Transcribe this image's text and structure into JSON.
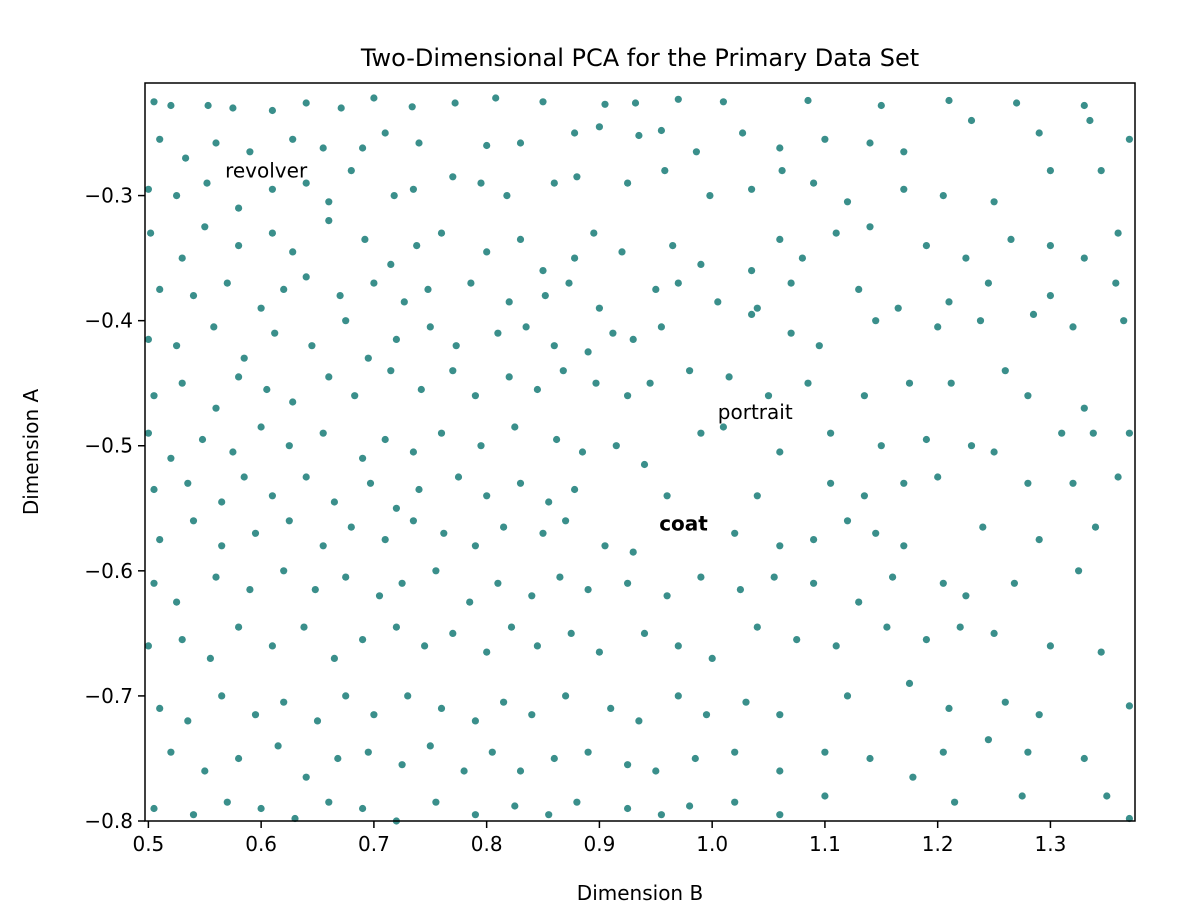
{
  "chart_data": {
    "type": "scatter",
    "title": "Two-Dimensional PCA for the Primary Data Set",
    "xlabel": "Dimension B",
    "ylabel": "Dimension A",
    "xlim": [
      0.497,
      1.375
    ],
    "ylim": [
      -0.8,
      -0.21
    ],
    "xticks": [
      0.5,
      0.6,
      0.7,
      0.8,
      0.9,
      1.0,
      1.1,
      1.2,
      1.3
    ],
    "xtick_labels": [
      "0.5",
      "0.6",
      "0.7",
      "0.8",
      "0.9",
      "1.0",
      "1.1",
      "1.2",
      "1.3"
    ],
    "yticks": [
      -0.3,
      -0.4,
      -0.5,
      -0.6,
      -0.7,
      -0.8
    ],
    "ytick_labels": [
      "−0.3",
      "−0.4",
      "−0.5",
      "−0.6",
      "−0.7",
      "−0.8"
    ],
    "grid": false,
    "point_color": "#3a8f8b",
    "annotations": [
      {
        "text": "revolver",
        "x": 0.568,
        "y": -0.28,
        "bold": false
      },
      {
        "text": "portrait",
        "x": 1.005,
        "y": -0.473,
        "bold": false
      },
      {
        "text": "coat",
        "x": 0.953,
        "y": -0.562,
        "bold": true
      }
    ],
    "points": [
      [
        0.505,
        -0.225
      ],
      [
        0.52,
        -0.228
      ],
      [
        0.553,
        -0.228
      ],
      [
        0.575,
        -0.23
      ],
      [
        0.61,
        -0.232
      ],
      [
        0.64,
        -0.226
      ],
      [
        0.671,
        -0.23
      ],
      [
        0.7,
        -0.222
      ],
      [
        0.734,
        -0.229
      ],
      [
        0.772,
        -0.226
      ],
      [
        0.808,
        -0.222
      ],
      [
        0.85,
        -0.225
      ],
      [
        0.905,
        -0.227
      ],
      [
        0.932,
        -0.226
      ],
      [
        0.97,
        -0.223
      ],
      [
        1.01,
        -0.225
      ],
      [
        1.085,
        -0.224
      ],
      [
        1.15,
        -0.228
      ],
      [
        1.21,
        -0.224
      ],
      [
        1.27,
        -0.226
      ],
      [
        1.33,
        -0.228
      ],
      [
        0.51,
        -0.255
      ],
      [
        0.533,
        -0.27
      ],
      [
        0.56,
        -0.258
      ],
      [
        0.59,
        -0.265
      ],
      [
        0.628,
        -0.255
      ],
      [
        0.655,
        -0.262
      ],
      [
        0.69,
        -0.262
      ],
      [
        0.71,
        -0.25
      ],
      [
        0.74,
        -0.258
      ],
      [
        0.8,
        -0.26
      ],
      [
        0.83,
        -0.258
      ],
      [
        0.878,
        -0.25
      ],
      [
        0.9,
        -0.245
      ],
      [
        0.935,
        -0.252
      ],
      [
        0.955,
        -0.248
      ],
      [
        0.986,
        -0.265
      ],
      [
        1.027,
        -0.25
      ],
      [
        1.06,
        -0.262
      ],
      [
        1.1,
        -0.255
      ],
      [
        1.14,
        -0.258
      ],
      [
        1.17,
        -0.265
      ],
      [
        1.23,
        -0.24
      ],
      [
        1.29,
        -0.25
      ],
      [
        1.335,
        -0.24
      ],
      [
        1.37,
        -0.255
      ],
      [
        0.5,
        -0.295
      ],
      [
        0.525,
        -0.3
      ],
      [
        0.552,
        -0.29
      ],
      [
        0.58,
        -0.31
      ],
      [
        0.61,
        -0.295
      ],
      [
        0.64,
        -0.29
      ],
      [
        0.66,
        -0.305
      ],
      [
        0.68,
        -0.28
      ],
      [
        0.718,
        -0.3
      ],
      [
        0.735,
        -0.295
      ],
      [
        0.77,
        -0.285
      ],
      [
        0.795,
        -0.29
      ],
      [
        0.818,
        -0.3
      ],
      [
        0.86,
        -0.29
      ],
      [
        0.88,
        -0.285
      ],
      [
        0.925,
        -0.29
      ],
      [
        0.958,
        -0.28
      ],
      [
        0.998,
        -0.3
      ],
      [
        1.035,
        -0.295
      ],
      [
        1.062,
        -0.28
      ],
      [
        1.09,
        -0.29
      ],
      [
        1.12,
        -0.305
      ],
      [
        1.17,
        -0.295
      ],
      [
        1.205,
        -0.3
      ],
      [
        1.25,
        -0.305
      ],
      [
        1.3,
        -0.28
      ],
      [
        1.345,
        -0.28
      ],
      [
        0.502,
        -0.33
      ],
      [
        0.53,
        -0.35
      ],
      [
        0.55,
        -0.325
      ],
      [
        0.58,
        -0.34
      ],
      [
        0.61,
        -0.33
      ],
      [
        0.628,
        -0.345
      ],
      [
        0.66,
        -0.32
      ],
      [
        0.692,
        -0.335
      ],
      [
        0.715,
        -0.355
      ],
      [
        0.738,
        -0.34
      ],
      [
        0.76,
        -0.33
      ],
      [
        0.8,
        -0.345
      ],
      [
        0.83,
        -0.335
      ],
      [
        0.85,
        -0.36
      ],
      [
        0.878,
        -0.35
      ],
      [
        0.895,
        -0.33
      ],
      [
        0.92,
        -0.345
      ],
      [
        0.965,
        -0.34
      ],
      [
        0.99,
        -0.355
      ],
      [
        1.035,
        -0.36
      ],
      [
        1.06,
        -0.335
      ],
      [
        1.08,
        -0.35
      ],
      [
        1.11,
        -0.33
      ],
      [
        1.14,
        -0.325
      ],
      [
        1.19,
        -0.34
      ],
      [
        1.225,
        -0.35
      ],
      [
        1.265,
        -0.335
      ],
      [
        1.3,
        -0.34
      ],
      [
        1.33,
        -0.35
      ],
      [
        1.36,
        -0.33
      ],
      [
        0.51,
        -0.375
      ],
      [
        0.54,
        -0.38
      ],
      [
        0.57,
        -0.37
      ],
      [
        0.6,
        -0.39
      ],
      [
        0.62,
        -0.375
      ],
      [
        0.64,
        -0.365
      ],
      [
        0.67,
        -0.38
      ],
      [
        0.7,
        -0.37
      ],
      [
        0.727,
        -0.385
      ],
      [
        0.748,
        -0.375
      ],
      [
        0.786,
        -0.37
      ],
      [
        0.82,
        -0.385
      ],
      [
        0.852,
        -0.38
      ],
      [
        0.873,
        -0.37
      ],
      [
        0.9,
        -0.39
      ],
      [
        0.95,
        -0.375
      ],
      [
        0.97,
        -0.37
      ],
      [
        1.005,
        -0.385
      ],
      [
        1.04,
        -0.39
      ],
      [
        1.07,
        -0.37
      ],
      [
        1.13,
        -0.375
      ],
      [
        1.165,
        -0.39
      ],
      [
        1.21,
        -0.385
      ],
      [
        1.245,
        -0.37
      ],
      [
        1.3,
        -0.38
      ],
      [
        1.358,
        -0.37
      ],
      [
        0.5,
        -0.415
      ],
      [
        0.525,
        -0.42
      ],
      [
        0.558,
        -0.405
      ],
      [
        0.585,
        -0.43
      ],
      [
        0.612,
        -0.41
      ],
      [
        0.645,
        -0.42
      ],
      [
        0.675,
        -0.4
      ],
      [
        0.695,
        -0.43
      ],
      [
        0.72,
        -0.415
      ],
      [
        0.75,
        -0.405
      ],
      [
        0.773,
        -0.42
      ],
      [
        0.81,
        -0.41
      ],
      [
        0.835,
        -0.405
      ],
      [
        0.86,
        -0.42
      ],
      [
        0.89,
        -0.425
      ],
      [
        0.912,
        -0.41
      ],
      [
        0.93,
        -0.415
      ],
      [
        0.955,
        -0.405
      ],
      [
        1.035,
        -0.395
      ],
      [
        1.07,
        -0.41
      ],
      [
        1.095,
        -0.42
      ],
      [
        1.145,
        -0.4
      ],
      [
        1.2,
        -0.405
      ],
      [
        1.238,
        -0.4
      ],
      [
        1.285,
        -0.395
      ],
      [
        1.32,
        -0.405
      ],
      [
        1.365,
        -0.4
      ],
      [
        0.505,
        -0.46
      ],
      [
        0.53,
        -0.45
      ],
      [
        0.56,
        -0.47
      ],
      [
        0.58,
        -0.445
      ],
      [
        0.605,
        -0.455
      ],
      [
        0.628,
        -0.465
      ],
      [
        0.66,
        -0.445
      ],
      [
        0.683,
        -0.46
      ],
      [
        0.715,
        -0.44
      ],
      [
        0.742,
        -0.455
      ],
      [
        0.77,
        -0.44
      ],
      [
        0.79,
        -0.46
      ],
      [
        0.82,
        -0.445
      ],
      [
        0.845,
        -0.455
      ],
      [
        0.868,
        -0.44
      ],
      [
        0.897,
        -0.45
      ],
      [
        0.925,
        -0.46
      ],
      [
        0.945,
        -0.45
      ],
      [
        0.98,
        -0.44
      ],
      [
        1.015,
        -0.445
      ],
      [
        1.05,
        -0.46
      ],
      [
        1.085,
        -0.45
      ],
      [
        1.135,
        -0.46
      ],
      [
        1.175,
        -0.45
      ],
      [
        1.212,
        -0.45
      ],
      [
        1.26,
        -0.44
      ],
      [
        1.28,
        -0.46
      ],
      [
        1.33,
        -0.47
      ],
      [
        0.5,
        -0.49
      ],
      [
        0.52,
        -0.51
      ],
      [
        0.548,
        -0.495
      ],
      [
        0.575,
        -0.505
      ],
      [
        0.6,
        -0.485
      ],
      [
        0.625,
        -0.5
      ],
      [
        0.655,
        -0.49
      ],
      [
        0.69,
        -0.51
      ],
      [
        0.71,
        -0.495
      ],
      [
        0.735,
        -0.505
      ],
      [
        0.76,
        -0.49
      ],
      [
        0.795,
        -0.5
      ],
      [
        0.825,
        -0.485
      ],
      [
        0.862,
        -0.495
      ],
      [
        0.885,
        -0.505
      ],
      [
        0.915,
        -0.5
      ],
      [
        0.94,
        -0.515
      ],
      [
        0.99,
        -0.49
      ],
      [
        1.01,
        -0.485
      ],
      [
        1.06,
        -0.505
      ],
      [
        1.105,
        -0.49
      ],
      [
        1.15,
        -0.5
      ],
      [
        1.19,
        -0.495
      ],
      [
        1.23,
        -0.5
      ],
      [
        1.25,
        -0.505
      ],
      [
        1.31,
        -0.49
      ],
      [
        1.338,
        -0.49
      ],
      [
        1.37,
        -0.49
      ],
      [
        0.505,
        -0.535
      ],
      [
        0.535,
        -0.53
      ],
      [
        0.565,
        -0.545
      ],
      [
        0.585,
        -0.525
      ],
      [
        0.61,
        -0.54
      ],
      [
        0.64,
        -0.525
      ],
      [
        0.665,
        -0.545
      ],
      [
        0.697,
        -0.53
      ],
      [
        0.72,
        -0.55
      ],
      [
        0.74,
        -0.535
      ],
      [
        0.775,
        -0.525
      ],
      [
        0.8,
        -0.54
      ],
      [
        0.83,
        -0.53
      ],
      [
        0.855,
        -0.545
      ],
      [
        0.878,
        -0.535
      ],
      [
        0.96,
        -0.54
      ],
      [
        1.04,
        -0.54
      ],
      [
        1.105,
        -0.53
      ],
      [
        1.135,
        -0.54
      ],
      [
        1.17,
        -0.53
      ],
      [
        1.2,
        -0.525
      ],
      [
        1.28,
        -0.53
      ],
      [
        1.32,
        -0.53
      ],
      [
        1.36,
        -0.525
      ],
      [
        0.51,
        -0.575
      ],
      [
        0.54,
        -0.56
      ],
      [
        0.565,
        -0.58
      ],
      [
        0.595,
        -0.57
      ],
      [
        0.625,
        -0.56
      ],
      [
        0.655,
        -0.58
      ],
      [
        0.68,
        -0.565
      ],
      [
        0.71,
        -0.575
      ],
      [
        0.735,
        -0.56
      ],
      [
        0.762,
        -0.57
      ],
      [
        0.79,
        -0.58
      ],
      [
        0.815,
        -0.565
      ],
      [
        0.85,
        -0.57
      ],
      [
        0.87,
        -0.56
      ],
      [
        0.905,
        -0.58
      ],
      [
        0.93,
        -0.585
      ],
      [
        1.02,
        -0.57
      ],
      [
        1.06,
        -0.58
      ],
      [
        1.09,
        -0.575
      ],
      [
        1.12,
        -0.56
      ],
      [
        1.145,
        -0.57
      ],
      [
        1.17,
        -0.58
      ],
      [
        1.24,
        -0.565
      ],
      [
        1.29,
        -0.575
      ],
      [
        1.34,
        -0.565
      ],
      [
        0.505,
        -0.61
      ],
      [
        0.525,
        -0.625
      ],
      [
        0.56,
        -0.605
      ],
      [
        0.59,
        -0.615
      ],
      [
        0.62,
        -0.6
      ],
      [
        0.648,
        -0.615
      ],
      [
        0.675,
        -0.605
      ],
      [
        0.705,
        -0.62
      ],
      [
        0.725,
        -0.61
      ],
      [
        0.755,
        -0.6
      ],
      [
        0.785,
        -0.625
      ],
      [
        0.81,
        -0.61
      ],
      [
        0.84,
        -0.62
      ],
      [
        0.865,
        -0.605
      ],
      [
        0.89,
        -0.615
      ],
      [
        0.925,
        -0.61
      ],
      [
        0.96,
        -0.62
      ],
      [
        0.99,
        -0.605
      ],
      [
        1.025,
        -0.615
      ],
      [
        1.055,
        -0.605
      ],
      [
        1.09,
        -0.61
      ],
      [
        1.13,
        -0.625
      ],
      [
        1.16,
        -0.605
      ],
      [
        1.205,
        -0.61
      ],
      [
        1.225,
        -0.62
      ],
      [
        1.268,
        -0.61
      ],
      [
        1.325,
        -0.6
      ],
      [
        0.5,
        -0.66
      ],
      [
        0.53,
        -0.655
      ],
      [
        0.555,
        -0.67
      ],
      [
        0.58,
        -0.645
      ],
      [
        0.61,
        -0.66
      ],
      [
        0.638,
        -0.645
      ],
      [
        0.665,
        -0.67
      ],
      [
        0.69,
        -0.655
      ],
      [
        0.72,
        -0.645
      ],
      [
        0.745,
        -0.66
      ],
      [
        0.77,
        -0.65
      ],
      [
        0.8,
        -0.665
      ],
      [
        0.822,
        -0.645
      ],
      [
        0.845,
        -0.66
      ],
      [
        0.875,
        -0.65
      ],
      [
        0.9,
        -0.665
      ],
      [
        0.94,
        -0.65
      ],
      [
        0.97,
        -0.66
      ],
      [
        1.0,
        -0.67
      ],
      [
        1.04,
        -0.645
      ],
      [
        1.075,
        -0.655
      ],
      [
        1.11,
        -0.66
      ],
      [
        1.155,
        -0.645
      ],
      [
        1.19,
        -0.655
      ],
      [
        1.22,
        -0.645
      ],
      [
        1.25,
        -0.65
      ],
      [
        1.3,
        -0.66
      ],
      [
        1.345,
        -0.665
      ],
      [
        0.51,
        -0.71
      ],
      [
        0.535,
        -0.72
      ],
      [
        0.565,
        -0.7
      ],
      [
        0.595,
        -0.715
      ],
      [
        0.62,
        -0.705
      ],
      [
        0.65,
        -0.72
      ],
      [
        0.675,
        -0.7
      ],
      [
        0.7,
        -0.715
      ],
      [
        0.73,
        -0.7
      ],
      [
        0.76,
        -0.71
      ],
      [
        0.79,
        -0.72
      ],
      [
        0.815,
        -0.705
      ],
      [
        0.84,
        -0.715
      ],
      [
        0.87,
        -0.7
      ],
      [
        0.91,
        -0.71
      ],
      [
        0.935,
        -0.72
      ],
      [
        0.97,
        -0.7
      ],
      [
        0.995,
        -0.715
      ],
      [
        1.03,
        -0.705
      ],
      [
        1.06,
        -0.715
      ],
      [
        1.12,
        -0.7
      ],
      [
        1.175,
        -0.69
      ],
      [
        1.21,
        -0.71
      ],
      [
        1.26,
        -0.705
      ],
      [
        1.29,
        -0.715
      ],
      [
        1.37,
        -0.708
      ],
      [
        0.52,
        -0.745
      ],
      [
        0.55,
        -0.76
      ],
      [
        0.58,
        -0.75
      ],
      [
        0.615,
        -0.74
      ],
      [
        0.64,
        -0.765
      ],
      [
        0.668,
        -0.75
      ],
      [
        0.695,
        -0.745
      ],
      [
        0.725,
        -0.755
      ],
      [
        0.75,
        -0.74
      ],
      [
        0.78,
        -0.76
      ],
      [
        0.805,
        -0.745
      ],
      [
        0.83,
        -0.76
      ],
      [
        0.86,
        -0.75
      ],
      [
        0.89,
        -0.745
      ],
      [
        0.925,
        -0.755
      ],
      [
        0.95,
        -0.76
      ],
      [
        0.985,
        -0.75
      ],
      [
        1.02,
        -0.745
      ],
      [
        1.06,
        -0.76
      ],
      [
        1.1,
        -0.745
      ],
      [
        1.14,
        -0.75
      ],
      [
        1.178,
        -0.765
      ],
      [
        1.205,
        -0.745
      ],
      [
        1.245,
        -0.735
      ],
      [
        1.28,
        -0.745
      ],
      [
        1.33,
        -0.75
      ],
      [
        0.505,
        -0.79
      ],
      [
        0.54,
        -0.795
      ],
      [
        0.57,
        -0.785
      ],
      [
        0.6,
        -0.79
      ],
      [
        0.63,
        -0.798
      ],
      [
        0.66,
        -0.785
      ],
      [
        0.69,
        -0.79
      ],
      [
        0.72,
        -0.8
      ],
      [
        0.755,
        -0.785
      ],
      [
        0.79,
        -0.795
      ],
      [
        0.825,
        -0.788
      ],
      [
        0.855,
        -0.795
      ],
      [
        0.88,
        -0.785
      ],
      [
        0.925,
        -0.79
      ],
      [
        0.955,
        -0.795
      ],
      [
        0.98,
        -0.788
      ],
      [
        1.02,
        -0.785
      ],
      [
        1.06,
        -0.795
      ],
      [
        1.1,
        -0.78
      ],
      [
        1.215,
        -0.785
      ],
      [
        1.275,
        -0.78
      ],
      [
        1.35,
        -0.78
      ],
      [
        1.37,
        -0.798
      ]
    ]
  }
}
